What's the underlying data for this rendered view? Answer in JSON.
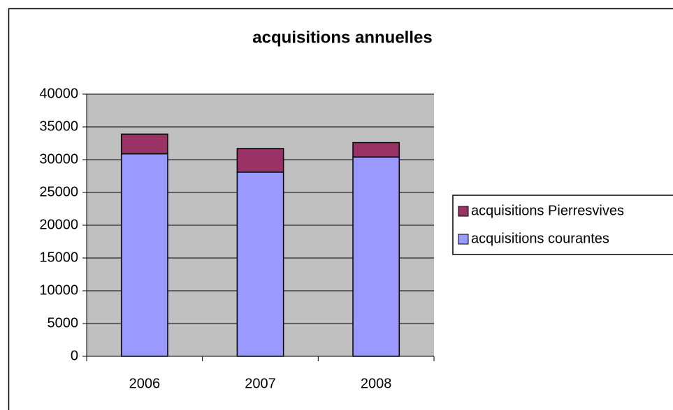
{
  "chart_data": {
    "type": "stacked_bar",
    "title": "acquisitions annuelles",
    "categories": [
      "2006",
      "2007",
      "2008"
    ],
    "series": [
      {
        "name": "acquisitions courantes",
        "color": "#9999ff",
        "values": [
          30900,
          28100,
          30400
        ]
      },
      {
        "name": "acquisitions Pierresvives",
        "color": "#993366",
        "values": [
          3000,
          3600,
          2200
        ]
      }
    ],
    "ylim": [
      0,
      40000
    ],
    "yticks": [
      0,
      5000,
      10000,
      15000,
      20000,
      25000,
      30000,
      35000,
      40000
    ],
    "grid": true,
    "legend": "right"
  }
}
